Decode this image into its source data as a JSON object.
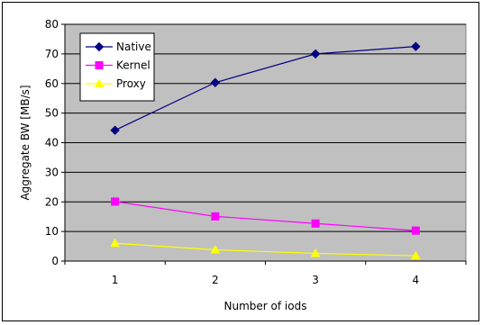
{
  "chart_data": {
    "type": "line",
    "title": "",
    "xlabel": "Number of iods",
    "ylabel": "Aggregate BW [MB/s]",
    "categories": [
      "1",
      "2",
      "3",
      "4"
    ],
    "ylim": [
      0,
      80
    ],
    "yticks": [
      0,
      10,
      20,
      30,
      40,
      50,
      60,
      70,
      80
    ],
    "grid": true,
    "legend_position": "top-left",
    "plot_background": "#c0c0c0",
    "series": [
      {
        "name": "Native",
        "values": [
          44.2,
          60.3,
          70.0,
          72.5
        ],
        "color": "#000080",
        "marker": "diamond"
      },
      {
        "name": "Kernel",
        "values": [
          20.1,
          15.1,
          12.7,
          10.3
        ],
        "color": "#ff00ff",
        "marker": "square"
      },
      {
        "name": "Proxy",
        "values": [
          6.0,
          3.8,
          2.6,
          1.8
        ],
        "color": "#ffff00",
        "marker": "triangle"
      }
    ]
  }
}
